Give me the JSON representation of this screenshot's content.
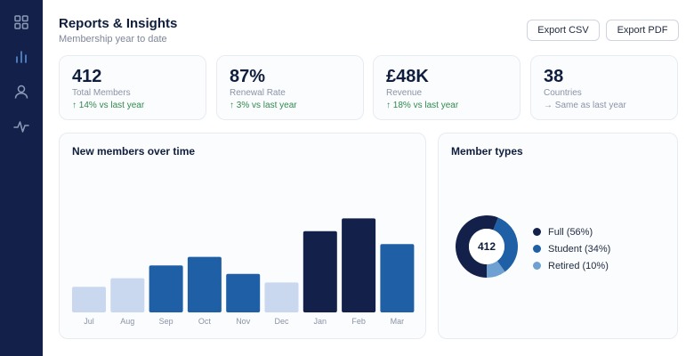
{
  "header": {
    "title": "Reports & Insights",
    "subtitle": "Membership year to date"
  },
  "actions": {
    "export_csv": "Export CSV",
    "export_pdf": "Export PDF"
  },
  "sidebar": {
    "items": [
      {
        "name": "dashboard",
        "icon": "grid-icon"
      },
      {
        "name": "reports",
        "icon": "bar-chart-icon",
        "active": true
      },
      {
        "name": "members",
        "icon": "user-icon"
      },
      {
        "name": "activity",
        "icon": "activity-icon"
      }
    ]
  },
  "kpis": [
    {
      "value": "412",
      "label": "Total Members",
      "change": "↑ 14% vs last year",
      "trend": "up"
    },
    {
      "value": "87%",
      "label": "Renewal Rate",
      "change": "↑ 3% vs last year",
      "trend": "up"
    },
    {
      "value": "£48K",
      "label": "Revenue",
      "change": "↑ 18% vs last year",
      "trend": "up"
    },
    {
      "value": "38",
      "label": "Countries",
      "change": "→ Same as last year",
      "trend": "flat"
    }
  ],
  "bar_panel": {
    "title": "New members over time"
  },
  "donut_panel": {
    "title": "Member types",
    "center_value": "412"
  },
  "colors": {
    "sidebar": "#13214a",
    "light_bar": "#c9d8ee",
    "mid_bar": "#1f5fa6",
    "dark_bar": "#13214a",
    "full": "#13214a",
    "student": "#1f5fa6",
    "retired": "#6fa0d2",
    "positive": "#2e8b4a"
  },
  "chart_data": [
    {
      "type": "bar",
      "title": "New members over time",
      "categories": [
        "Jul",
        "Aug",
        "Sep",
        "Oct",
        "Nov",
        "Dec",
        "Jan",
        "Feb",
        "Mar"
      ],
      "values": [
        24,
        32,
        44,
        52,
        36,
        28,
        76,
        88,
        64
      ],
      "bar_colors": [
        "#c9d8ee",
        "#c9d8ee",
        "#1f5fa6",
        "#1f5fa6",
        "#1f5fa6",
        "#c9d8ee",
        "#13214a",
        "#13214a",
        "#1f5fa6"
      ],
      "ylim": [
        0,
        100
      ],
      "grid": false,
      "xlabel": "",
      "ylabel": ""
    },
    {
      "type": "pie",
      "title": "Member types",
      "donut": true,
      "labels": [
        "Full (56%)",
        "Student (34%)",
        "Retired (10%)"
      ],
      "values": [
        56,
        34,
        10
      ],
      "colors": [
        "#13214a",
        "#1f5fa6",
        "#6fa0d2"
      ],
      "legend": "right"
    }
  ]
}
